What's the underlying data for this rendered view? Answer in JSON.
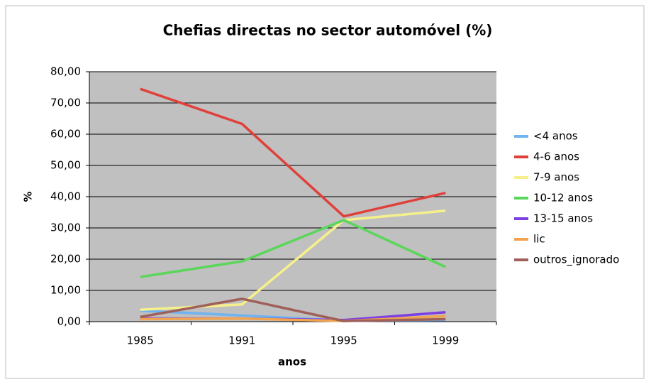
{
  "chart_data": {
    "type": "line",
    "title": "Chefias directas no sector automóvel (%)",
    "x_label": "anos",
    "y_label": "%",
    "categories": [
      "1985",
      "1991",
      "1995",
      "1999"
    ],
    "series": [
      {
        "name": "<4 anos",
        "color": "#6fb3f0",
        "values": [
          3.5,
          2.0,
          0.3,
          0.5
        ]
      },
      {
        "name": "4-6 anos",
        "color": "#e0403a",
        "values": [
          74.5,
          63.3,
          33.7,
          41.2
        ]
      },
      {
        "name": "7-9 anos",
        "color": "#f6f08c",
        "values": [
          3.8,
          5.5,
          32.5,
          35.5
        ]
      },
      {
        "name": "10-12 anos",
        "color": "#5ad65a",
        "values": [
          14.3,
          19.3,
          32.5,
          17.5
        ]
      },
      {
        "name": "13-15 anos",
        "color": "#7b3fe4",
        "values": [
          1.0,
          1.0,
          0.5,
          3.0
        ]
      },
      {
        "name": "lic",
        "color": "#f0a450",
        "values": [
          0.8,
          1.0,
          0.2,
          1.8
        ]
      },
      {
        "name": "outros_ignorado",
        "color": "#a0605a",
        "values": [
          1.5,
          7.3,
          0.2,
          0.8
        ]
      }
    ],
    "ylim": [
      0,
      80
    ],
    "yticks": [
      {
        "value": 0,
        "label": "0,00"
      },
      {
        "value": 10,
        "label": "10,00"
      },
      {
        "value": 20,
        "label": "20,00"
      },
      {
        "value": 30,
        "label": "30,00"
      },
      {
        "value": 40,
        "label": "40,00"
      },
      {
        "value": 50,
        "label": "50,00"
      },
      {
        "value": 60,
        "label": "60,00"
      },
      {
        "value": 70,
        "label": "70,00"
      },
      {
        "value": 80,
        "label": "80,00"
      }
    ],
    "grid": true,
    "legend": "right"
  }
}
